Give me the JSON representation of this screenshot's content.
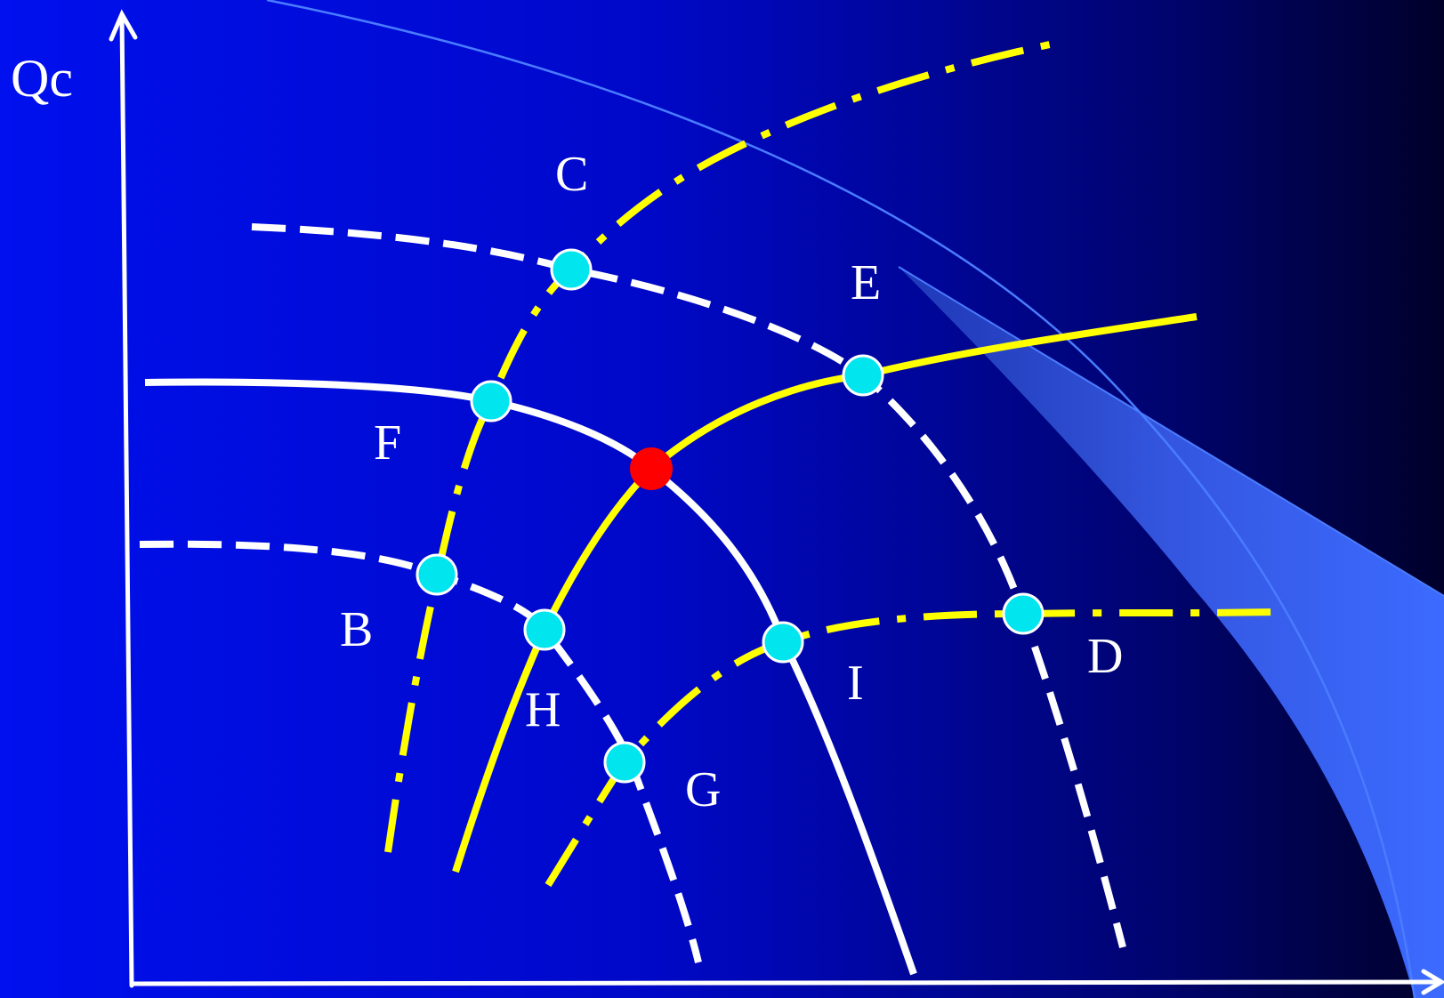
{
  "axis": {
    "y_label": "Qc",
    "x_label": ""
  },
  "points": {
    "C": "C",
    "E": "E",
    "F": "F",
    "B": "B",
    "H": "H",
    "D": "D",
    "I": "I",
    "G": "G"
  },
  "colors": {
    "background_start": "#0011ee",
    "background_end": "#00002a",
    "white_curves": "#ffffff",
    "yellow_curves": "#ffff00",
    "points_fill": "#00e5ee",
    "center_point": "#ff0000",
    "shaded_wedge": "#3c6bff"
  }
}
